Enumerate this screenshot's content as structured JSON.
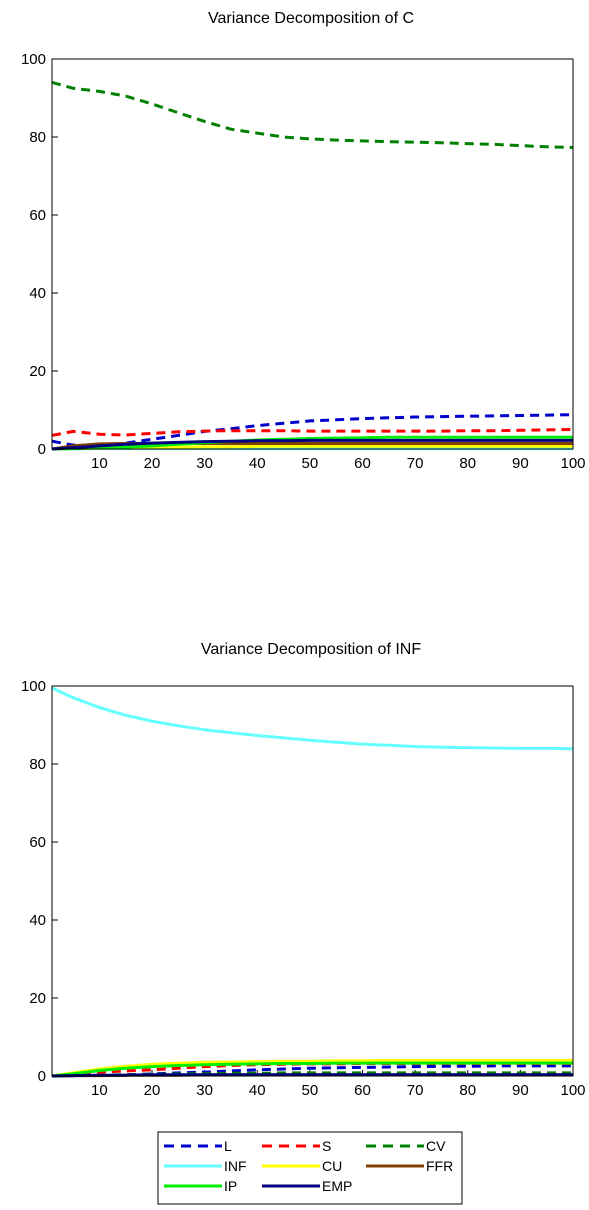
{
  "chart_data": [
    {
      "type": "line",
      "title": "Variance Decomposition of C",
      "xlim": [
        1,
        100
      ],
      "ylim": [
        0,
        100
      ],
      "xticks": [
        10,
        20,
        30,
        40,
        50,
        60,
        70,
        80,
        90,
        100
      ],
      "yticks": [
        0,
        20,
        40,
        60,
        80,
        100
      ],
      "x": [
        1,
        5,
        10,
        15,
        20,
        25,
        30,
        35,
        40,
        45,
        50,
        55,
        60,
        65,
        70,
        75,
        80,
        85,
        90,
        95,
        100
      ],
      "series": [
        {
          "name": "L",
          "color": "#0000cc",
          "dash": true,
          "values": [
            2.0,
            1.0,
            1.0,
            1.5,
            2.5,
            3.5,
            4.5,
            5.2,
            6.0,
            6.6,
            7.2,
            7.5,
            7.8,
            8.0,
            8.2,
            8.3,
            8.4,
            8.5,
            8.6,
            8.7,
            8.8
          ]
        },
        {
          "name": "S",
          "color": "#ff0000",
          "dash": true,
          "values": [
            3.5,
            4.5,
            3.8,
            3.6,
            4.0,
            4.4,
            4.6,
            4.7,
            4.7,
            4.7,
            4.6,
            4.6,
            4.6,
            4.6,
            4.6,
            4.6,
            4.7,
            4.7,
            4.8,
            4.9,
            5.0
          ]
        },
        {
          "name": "CV",
          "color": "#008000",
          "dash": true,
          "values": [
            94.0,
            92.5,
            91.7,
            90.5,
            88.5,
            86.2,
            84.0,
            82.0,
            81.0,
            80.0,
            79.5,
            79.2,
            79.0,
            78.8,
            78.7,
            78.5,
            78.3,
            78.1,
            77.8,
            77.5,
            77.3
          ]
        },
        {
          "name": "INF",
          "color": "#66ffff",
          "dash": false,
          "values": [
            0.0,
            0.0,
            0.1,
            0.1,
            0.1,
            0.1,
            0.1,
            0.1,
            0.1,
            0.1,
            0.1,
            0.1,
            0.1,
            0.1,
            0.1,
            0.1,
            0.1,
            0.1,
            0.1,
            0.1,
            0.1
          ]
        },
        {
          "name": "CU",
          "color": "#ffff00",
          "dash": false,
          "values": [
            0.0,
            0.1,
            0.2,
            0.3,
            0.4,
            0.5,
            0.6,
            0.6,
            0.7,
            0.7,
            0.7,
            0.7,
            0.7,
            0.7,
            0.7,
            0.7,
            0.7,
            0.7,
            0.7,
            0.7,
            0.7
          ]
        },
        {
          "name": "FFR",
          "color": "#804000",
          "dash": false,
          "values": [
            0.0,
            0.8,
            1.3,
            1.4,
            1.4,
            1.4,
            1.4,
            1.4,
            1.4,
            1.4,
            1.4,
            1.4,
            1.4,
            1.4,
            1.4,
            1.4,
            1.4,
            1.4,
            1.4,
            1.4,
            1.4
          ]
        },
        {
          "name": "IP",
          "color": "#00ee00",
          "dash": false,
          "values": [
            0.0,
            0.1,
            0.3,
            0.5,
            0.8,
            1.2,
            1.6,
            2.0,
            2.3,
            2.5,
            2.7,
            2.8,
            2.9,
            3.0,
            3.0,
            3.0,
            3.0,
            3.0,
            3.0,
            3.0,
            3.0
          ]
        },
        {
          "name": "EMP",
          "color": "#000080",
          "dash": false,
          "values": [
            0.0,
            0.3,
            0.8,
            1.2,
            1.5,
            1.7,
            1.9,
            2.0,
            2.1,
            2.1,
            2.2,
            2.2,
            2.2,
            2.2,
            2.2,
            2.2,
            2.2,
            2.2,
            2.2,
            2.2,
            2.2
          ]
        }
      ]
    },
    {
      "type": "line",
      "title": "Variance Decomposition of INF",
      "xlim": [
        1,
        100
      ],
      "ylim": [
        0,
        100
      ],
      "xticks": [
        10,
        20,
        30,
        40,
        50,
        60,
        70,
        80,
        90,
        100
      ],
      "yticks": [
        0,
        20,
        40,
        60,
        80,
        100
      ],
      "x": [
        1,
        5,
        10,
        15,
        20,
        25,
        30,
        35,
        40,
        45,
        50,
        55,
        60,
        65,
        70,
        75,
        80,
        85,
        90,
        95,
        100
      ],
      "series": [
        {
          "name": "L",
          "color": "#0000cc",
          "dash": true,
          "values": [
            0.0,
            0.1,
            0.2,
            0.3,
            0.5,
            0.8,
            1.0,
            1.3,
            1.6,
            1.8,
            2.0,
            2.1,
            2.2,
            2.3,
            2.4,
            2.5,
            2.5,
            2.6,
            2.6,
            2.6,
            2.6
          ]
        },
        {
          "name": "S",
          "color": "#ff0000",
          "dash": true,
          "values": [
            0.0,
            0.5,
            1.0,
            1.3,
            1.6,
            2.0,
            2.4,
            2.7,
            2.9,
            3.0,
            3.1,
            3.1,
            3.2,
            3.2,
            3.2,
            3.2,
            3.2,
            3.2,
            3.2,
            3.2,
            3.2
          ]
        },
        {
          "name": "CV",
          "color": "#008000",
          "dash": true,
          "values": [
            0.0,
            0.1,
            0.2,
            0.3,
            0.4,
            0.5,
            0.6,
            0.7,
            0.7,
            0.8,
            0.8,
            0.8,
            0.8,
            0.8,
            0.8,
            0.8,
            0.8,
            0.8,
            0.8,
            0.8,
            0.8
          ]
        },
        {
          "name": "INF",
          "color": "#66ffff",
          "dash": false,
          "values": [
            99.5,
            97.0,
            94.5,
            92.5,
            91.0,
            89.8,
            88.8,
            88.0,
            87.3,
            86.7,
            86.1,
            85.6,
            85.1,
            84.8,
            84.5,
            84.3,
            84.2,
            84.1,
            84.0,
            84.0,
            83.9
          ]
        },
        {
          "name": "CU",
          "color": "#ffff00",
          "dash": false,
          "values": [
            0.0,
            0.8,
            1.8,
            2.5,
            3.0,
            3.3,
            3.5,
            3.6,
            3.7,
            3.8,
            3.8,
            3.9,
            3.9,
            4.0,
            4.0,
            4.0,
            4.0,
            4.0,
            4.0,
            4.0,
            4.0
          ]
        },
        {
          "name": "FFR",
          "color": "#804000",
          "dash": false,
          "values": [
            0.0,
            0.1,
            0.1,
            0.2,
            0.2,
            0.2,
            0.3,
            0.3,
            0.3,
            0.3,
            0.3,
            0.3,
            0.3,
            0.3,
            0.3,
            0.3,
            0.3,
            0.3,
            0.3,
            0.3,
            0.3
          ]
        },
        {
          "name": "IP",
          "color": "#00ee00",
          "dash": false,
          "values": [
            0.0,
            0.6,
            1.4,
            2.0,
            2.4,
            2.7,
            2.9,
            3.0,
            3.1,
            3.2,
            3.2,
            3.3,
            3.3,
            3.3,
            3.3,
            3.3,
            3.3,
            3.3,
            3.3,
            3.3,
            3.3
          ]
        },
        {
          "name": "EMP",
          "color": "#000080",
          "dash": false,
          "values": [
            0.0,
            0.1,
            0.2,
            0.2,
            0.3,
            0.3,
            0.3,
            0.3,
            0.3,
            0.3,
            0.3,
            0.3,
            0.3,
            0.3,
            0.3,
            0.3,
            0.3,
            0.3,
            0.3,
            0.3,
            0.3
          ]
        }
      ]
    }
  ],
  "legend": {
    "placement": "bottom",
    "items": [
      {
        "label": "L",
        "color": "#0000cc",
        "dash": true
      },
      {
        "label": "S",
        "color": "#ff0000",
        "dash": true
      },
      {
        "label": "CV",
        "color": "#008000",
        "dash": true
      },
      {
        "label": "INF",
        "color": "#66ffff",
        "dash": false
      },
      {
        "label": "CU",
        "color": "#ffff00",
        "dash": false
      },
      {
        "label": "FFR",
        "color": "#804000",
        "dash": false
      },
      {
        "label": "IP",
        "color": "#00ee00",
        "dash": false
      },
      {
        "label": "EMP",
        "color": "#000080",
        "dash": false
      }
    ]
  }
}
